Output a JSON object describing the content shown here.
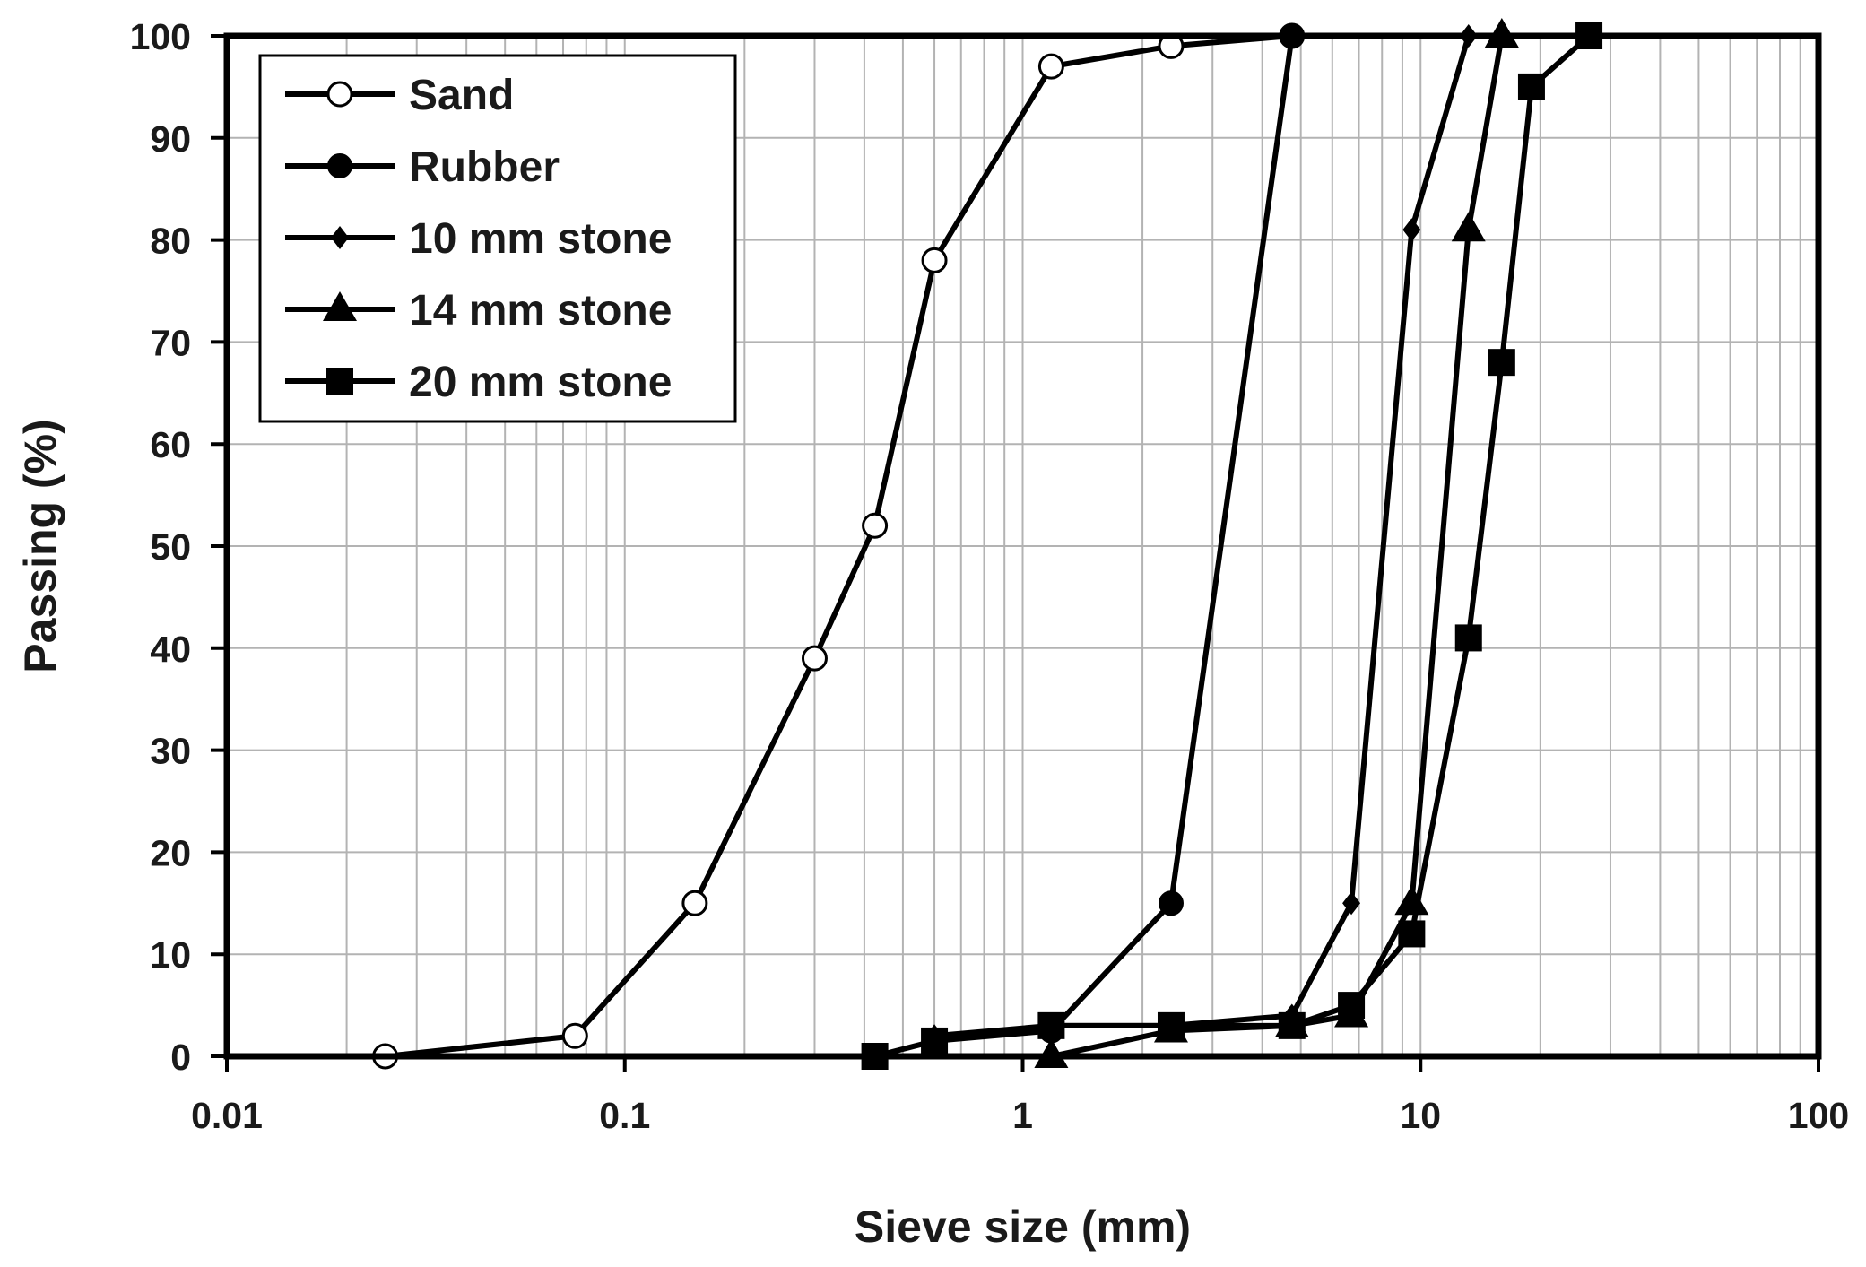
{
  "chart_data": {
    "type": "line",
    "title": "",
    "xlabel": "Sieve size (mm)",
    "ylabel": "Passing (%)",
    "x_scale": "log",
    "xlim": [
      0.01,
      100
    ],
    "ylim": [
      0,
      100
    ],
    "x_ticks": [
      0.01,
      0.1,
      1,
      10,
      100
    ],
    "x_tick_labels": [
      "0.01",
      "0.1",
      "1",
      "10",
      "100"
    ],
    "y_ticks": [
      0,
      10,
      20,
      30,
      40,
      50,
      60,
      70,
      80,
      90,
      100
    ],
    "y_tick_labels": [
      "0",
      "10",
      "20",
      "30",
      "40",
      "50",
      "60",
      "70",
      "80",
      "90",
      "100"
    ],
    "grid": true,
    "legend_position": "top-left",
    "colors": {
      "line": "#000000",
      "grid": "#b3b3b3",
      "background": "#ffffff"
    },
    "series": [
      {
        "name": "Sand",
        "marker": "circle-open",
        "x": [
          0.025,
          0.075,
          0.15,
          0.3,
          0.425,
          0.6,
          1.18,
          2.36,
          4.75
        ],
        "y": [
          0,
          2,
          15,
          39,
          52,
          78,
          97,
          99,
          100
        ]
      },
      {
        "name": "Rubber",
        "marker": "circle-filled",
        "x": [
          0.6,
          1.18,
          2.36,
          4.75
        ],
        "y": [
          1.5,
          2.5,
          15,
          100
        ]
      },
      {
        "name": "10 mm stone",
        "marker": "diamond",
        "x": [
          0.6,
          1.18,
          2.36,
          4.75,
          6.7,
          9.5,
          13.2
        ],
        "y": [
          2,
          3,
          3,
          4,
          15,
          81,
          100
        ]
      },
      {
        "name": "14 mm stone",
        "marker": "triangle",
        "x": [
          1.18,
          2.36,
          4.75,
          6.7,
          9.5,
          13.2,
          16
        ],
        "y": [
          0,
          2.5,
          3,
          4,
          15,
          81,
          100
        ]
      },
      {
        "name": "20 mm stone",
        "marker": "square",
        "x": [
          0.425,
          0.6,
          1.18,
          2.36,
          4.75,
          6.7,
          9.5,
          13.2,
          16,
          19,
          26.5
        ],
        "y": [
          0,
          1.5,
          3,
          3,
          3,
          5,
          12,
          41,
          68,
          95,
          100
        ]
      }
    ]
  }
}
